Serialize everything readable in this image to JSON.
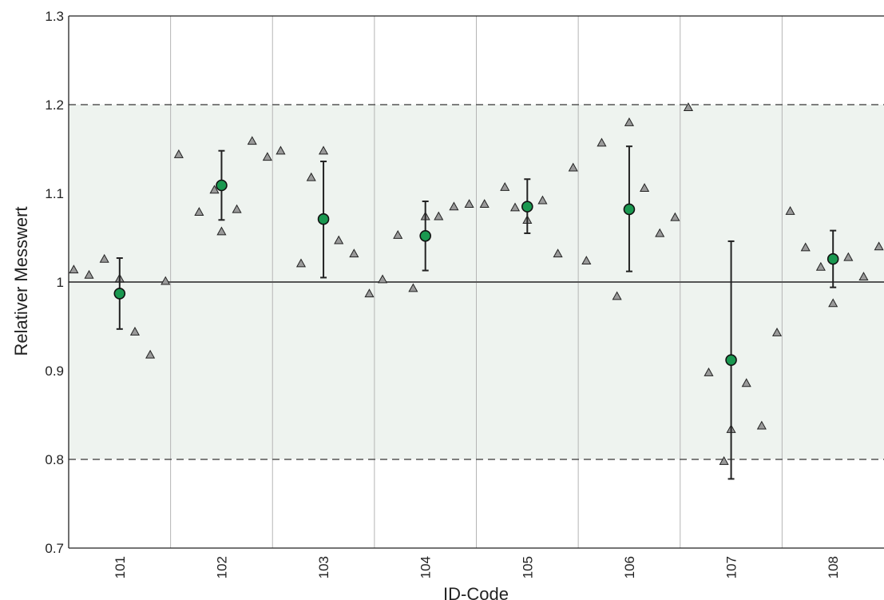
{
  "chart_data": {
    "type": "scatter",
    "xlabel": "ID-Code",
    "ylabel": "Relativer Messwert",
    "categories": [
      "101",
      "102",
      "103",
      "104",
      "105",
      "106",
      "107",
      "108"
    ],
    "ylim": [
      0.7,
      1.3
    ],
    "yticks": [
      0.7,
      0.8,
      0.9,
      1.0,
      1.1,
      1.2,
      1.3
    ],
    "ytick_labels": [
      "0.7",
      "0.8",
      "0.9",
      "1",
      "1.1",
      "1.2",
      "1.3"
    ],
    "tolerance_band": [
      0.8,
      1.2
    ],
    "reference_line": 1.0,
    "grid": "vertical category separators",
    "colors": {
      "band": "#eef3ef",
      "mean_marker": "#1a9850",
      "triangle": "#9a9a9a",
      "outline": "#222222",
      "line": "#555555"
    },
    "series": [
      {
        "marker": "triangle",
        "points": [
          {
            "x": 0.55,
            "y": 1.014
          },
          {
            "x": 0.7,
            "y": 1.008
          },
          {
            "x": 0.85,
            "y": 1.026
          },
          {
            "x": 1.0,
            "y": 1.004
          },
          {
            "x": 1.15,
            "y": 0.944
          },
          {
            "x": 1.3,
            "y": 0.918
          },
          {
            "x": 1.45,
            "y": 1.001
          },
          {
            "x": 1.58,
            "y": 1.144
          },
          {
            "x": 1.78,
            "y": 1.079
          },
          {
            "x": 1.93,
            "y": 1.104
          },
          {
            "x": 2.0,
            "y": 1.057
          },
          {
            "x": 2.15,
            "y": 1.082
          },
          {
            "x": 2.3,
            "y": 1.159
          },
          {
            "x": 2.45,
            "y": 1.141
          },
          {
            "x": 2.58,
            "y": 1.148
          },
          {
            "x": 2.78,
            "y": 1.021
          },
          {
            "x": 2.88,
            "y": 1.118
          },
          {
            "x": 3.0,
            "y": 1.148
          },
          {
            "x": 3.15,
            "y": 1.047
          },
          {
            "x": 3.3,
            "y": 1.032
          },
          {
            "x": 3.45,
            "y": 0.987
          },
          {
            "x": 3.58,
            "y": 1.003
          },
          {
            "x": 3.73,
            "y": 1.053
          },
          {
            "x": 3.88,
            "y": 0.993
          },
          {
            "x": 4.0,
            "y": 1.074
          },
          {
            "x": 4.13,
            "y": 1.074
          },
          {
            "x": 4.28,
            "y": 1.085
          },
          {
            "x": 4.43,
            "y": 1.088
          },
          {
            "x": 4.58,
            "y": 1.088
          },
          {
            "x": 4.78,
            "y": 1.107
          },
          {
            "x": 4.88,
            "y": 1.084
          },
          {
            "x": 5.0,
            "y": 1.07
          },
          {
            "x": 5.15,
            "y": 1.092
          },
          {
            "x": 5.3,
            "y": 1.032
          },
          {
            "x": 5.45,
            "y": 1.129
          },
          {
            "x": 5.58,
            "y": 1.024
          },
          {
            "x": 5.73,
            "y": 1.157
          },
          {
            "x": 5.88,
            "y": 0.984
          },
          {
            "x": 6.0,
            "y": 1.18
          },
          {
            "x": 6.15,
            "y": 1.106
          },
          {
            "x": 6.3,
            "y": 1.055
          },
          {
            "x": 6.45,
            "y": 1.073
          },
          {
            "x": 6.58,
            "y": 1.197
          },
          {
            "x": 6.78,
            "y": 0.898
          },
          {
            "x": 6.93,
            "y": 0.798
          },
          {
            "x": 7.0,
            "y": 0.834
          },
          {
            "x": 7.15,
            "y": 0.886
          },
          {
            "x": 7.3,
            "y": 0.838
          },
          {
            "x": 7.45,
            "y": 0.943
          },
          {
            "x": 7.58,
            "y": 1.08
          },
          {
            "x": 7.73,
            "y": 1.039
          },
          {
            "x": 7.88,
            "y": 1.017
          },
          {
            "x": 8.0,
            "y": 0.976
          },
          {
            "x": 8.15,
            "y": 1.028
          },
          {
            "x": 8.3,
            "y": 1.006
          },
          {
            "x": 8.45,
            "y": 1.04
          }
        ]
      },
      {
        "marker": "circle",
        "points": [
          {
            "x": 1,
            "y": 0.987,
            "low": 0.947,
            "high": 1.027
          },
          {
            "x": 2,
            "y": 1.109,
            "low": 1.07,
            "high": 1.148
          },
          {
            "x": 3,
            "y": 1.071,
            "low": 1.005,
            "high": 1.136
          },
          {
            "x": 4,
            "y": 1.052,
            "low": 1.013,
            "high": 1.091
          },
          {
            "x": 5,
            "y": 1.085,
            "low": 1.055,
            "high": 1.116
          },
          {
            "x": 6,
            "y": 1.082,
            "low": 1.012,
            "high": 1.153
          },
          {
            "x": 7,
            "y": 0.912,
            "low": 0.778,
            "high": 1.046
          },
          {
            "x": 8,
            "y": 1.026,
            "low": 0.994,
            "high": 1.058
          }
        ]
      }
    ]
  }
}
